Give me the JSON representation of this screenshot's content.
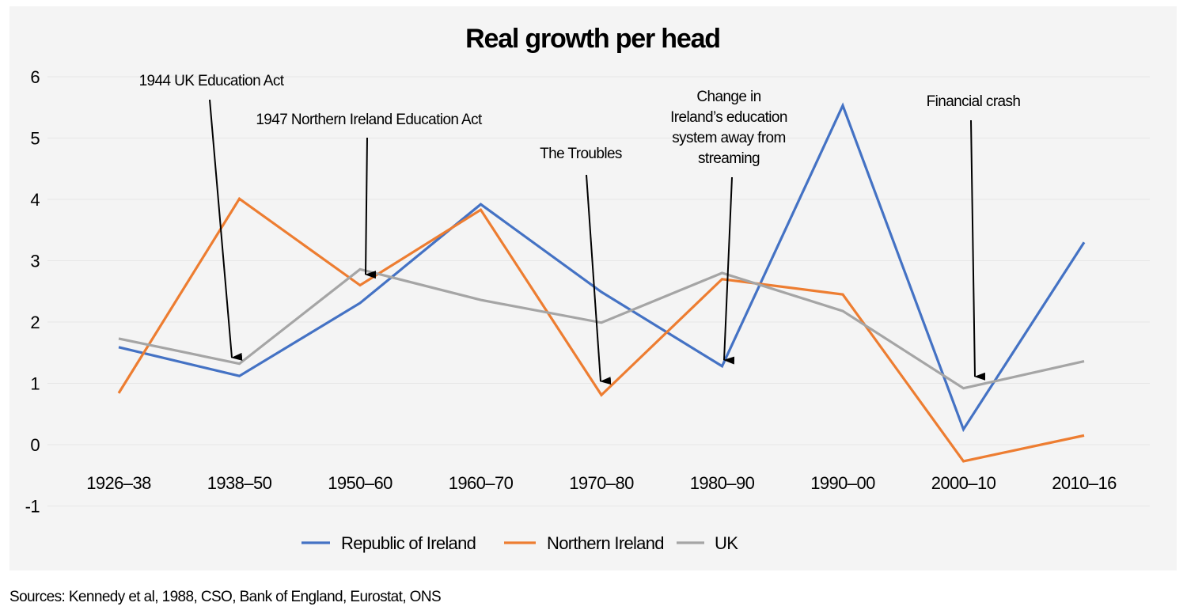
{
  "chart_data": {
    "type": "line",
    "title": "Real growth per head",
    "xlabel": "",
    "ylabel": "",
    "ylim": [
      -1,
      6
    ],
    "yticks": [
      "6",
      "5",
      "4",
      "3",
      "2",
      "1",
      "0",
      "-1"
    ],
    "ytick_values": [
      6,
      5,
      4,
      3,
      2,
      1,
      0,
      -1
    ],
    "grid": true,
    "categories": [
      "1926–38",
      "1938–50",
      "1950–60",
      "1960–70",
      "1970–80",
      "1980–90",
      "1990–00",
      "2000–10",
      "2010–16"
    ],
    "series": [
      {
        "name": "Republic of Ireland",
        "color": "#4472c4",
        "values": [
          1.59,
          1.12,
          2.31,
          3.92,
          2.49,
          1.28,
          5.53,
          0.25,
          3.3
        ]
      },
      {
        "name": "Northern Ireland",
        "color": "#ed7d31",
        "values": [
          0.84,
          4.01,
          2.6,
          3.83,
          0.81,
          2.7,
          2.45,
          -0.27,
          0.15
        ]
      },
      {
        "name": "UK",
        "color": "#a5a5a5",
        "values": [
          1.73,
          1.32,
          2.86,
          2.36,
          1.99,
          2.8,
          2.18,
          0.92,
          1.36
        ]
      }
    ],
    "legend_position": "bottom",
    "annotations": [
      {
        "lines": [
          "1944 UK Education Act"
        ],
        "points_to": "1938–50",
        "value": 1.4
      },
      {
        "lines": [
          "1947 Northern Ireland Education Act"
        ],
        "points_to": "1950–60",
        "value": 2.8
      },
      {
        "lines": [
          "The Troubles"
        ],
        "points_to": "1970–80",
        "value": 1.0
      },
      {
        "lines": [
          "Change in",
          "Ireland’s education",
          "system away from",
          "streaming"
        ],
        "points_to": "1980–90",
        "value": 1.4
      },
      {
        "lines": [
          "Financial crash"
        ],
        "points_to": "2000–10",
        "value": 1.1
      }
    ]
  },
  "source": "Sources: Kennedy et al, 1988, CSO, Bank of England, Eurostat, ONS"
}
